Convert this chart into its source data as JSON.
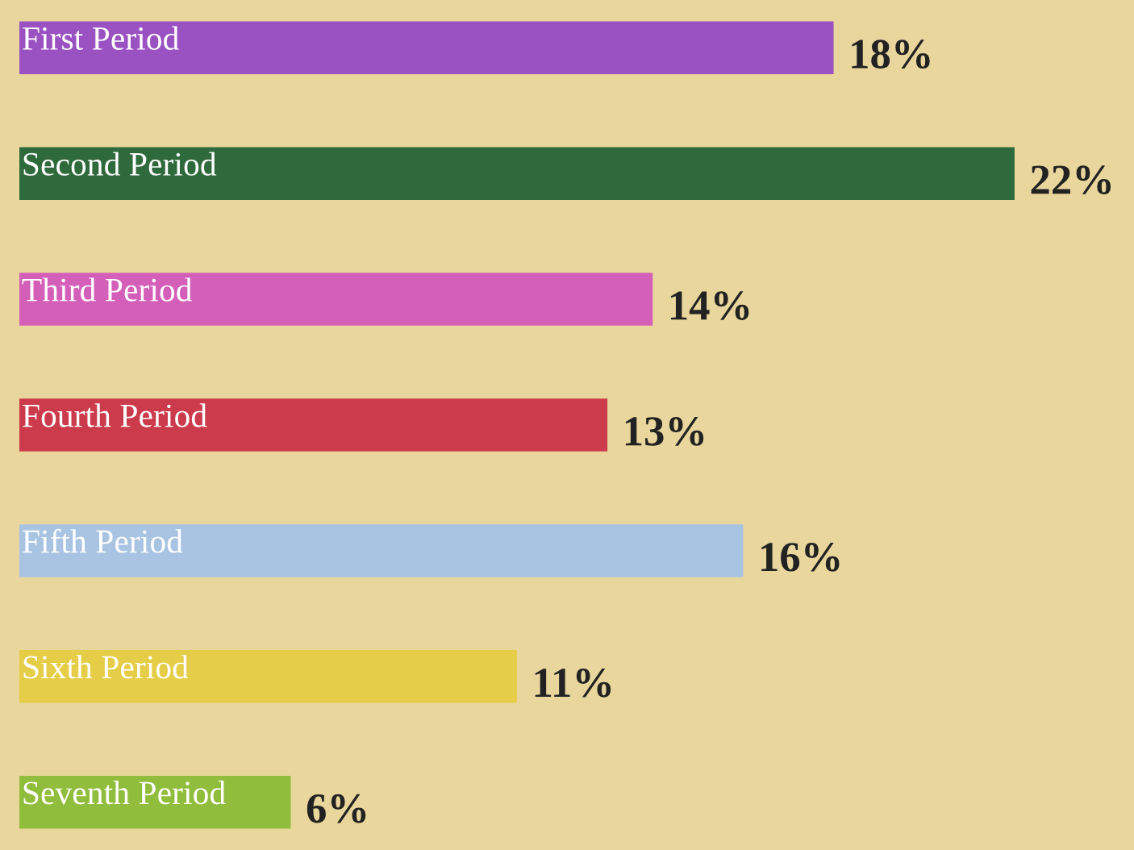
{
  "chart_data": {
    "type": "bar",
    "orientation": "horizontal",
    "categories": [
      "First Period",
      "Second Period",
      "Third Period",
      "Fourth Period",
      "Fifth Period",
      "Sixth Period",
      "Seventh Period"
    ],
    "values": [
      18,
      22,
      14,
      13,
      16,
      11,
      6
    ],
    "colors": [
      "#9a52c2",
      "#2f6a3c",
      "#d45fb8",
      "#cc3b4b",
      "#a9c4e2",
      "#e6cd48",
      "#90bd3c"
    ],
    "value_labels": [
      "18%",
      "22%",
      "14%",
      "13%",
      "16%",
      "11%",
      "6%"
    ]
  }
}
